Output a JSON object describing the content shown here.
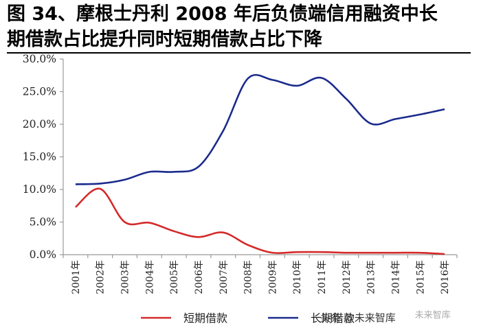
{
  "title_lines": [
    "图 34、摩根士丹利 2008 年后负债端信用融资中长",
    "期借款占比提升同时短期借款占比下降"
  ],
  "chart_data": {
    "type": "line",
    "x": [
      "2001年",
      "2002年",
      "2003年",
      "2004年",
      "2005年",
      "2006年",
      "2007年",
      "2008年",
      "2009年",
      "2010年",
      "2011年",
      "2012年",
      "2013年",
      "2014年",
      "2015年",
      "2016年"
    ],
    "series": [
      {
        "name": "短期借款",
        "color": "#d42a2a",
        "values": [
          7.3,
          10.1,
          5.0,
          4.9,
          3.6,
          2.7,
          3.4,
          1.5,
          0.3,
          0.4,
          0.4,
          0.3,
          0.3,
          0.3,
          0.3,
          0.1
        ]
      },
      {
        "name": "长期借款",
        "color": "#1a2a8c",
        "values": [
          10.8,
          10.9,
          11.5,
          12.7,
          12.7,
          13.5,
          19.0,
          27.0,
          26.8,
          25.9,
          27.1,
          23.9,
          20.1,
          20.8,
          21.5,
          22.3
        ]
      }
    ],
    "yticks": [
      "0.0%",
      "5.0%",
      "10.0%",
      "15.0%",
      "20.0%",
      "25.0%",
      "30.0%"
    ],
    "ylim": [
      0,
      30
    ],
    "grid": false,
    "legend": "bottom"
  },
  "watermark": {
    "main": "头条 @未来智库",
    "sub": "未来智库"
  }
}
